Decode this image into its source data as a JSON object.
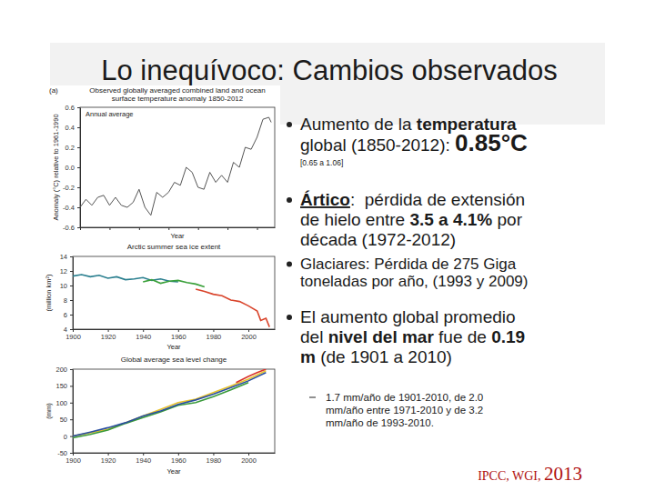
{
  "slide": {
    "title": "Lo inequívoco: Cambios observados",
    "bullets": [
      {
        "lines": [
          [
            "Aumento de la ",
            "temperatura"
          ],
          [
            "global (1850-2012): ",
            "0.85°C"
          ],
          [
            "[0.65 a 1.06]"
          ]
        ]
      },
      {
        "lines": [
          [
            "Ártico",
            ":  pérdida de extensión"
          ],
          [
            "de hielo entre ",
            "3.5 a 4.1%",
            " por"
          ],
          [
            "década (1972-2012)"
          ]
        ]
      },
      {
        "lines": [
          [
            "Glaciares: Pérdida de 275 Giga"
          ],
          [
            "toneladas por año, (1993 y 2009)"
          ]
        ]
      },
      {
        "lines": [
          [
            "El aumento global promedio"
          ],
          [
            "del ",
            "nivel del mar",
            " fue de ",
            "0.19"
          ],
          [
            "m",
            " (de 1901 a 2010)"
          ]
        ]
      }
    ],
    "sub_bullets": [
      {
        "lines": [
          "1.7 mm/año de 1901-2010, de 2.0",
          "mm/año entre 1971-2010 y de 3.2",
          "mm/año de 1993-2010."
        ]
      }
    ],
    "source": [
      "IPCC, WGI, ",
      "2013"
    ]
  },
  "chart_data": [
    {
      "type": "line",
      "panel_label": "(a)",
      "title": [
        "Observed globally averaged combined land and ocean",
        "surface temperature anomaly 1850-2012"
      ],
      "annotation": "Annual average",
      "x_label": "Year",
      "y_label": "Anomaly (°C) relative to 1961-1990",
      "x": [
        1850,
        1855,
        1860,
        1865,
        1870,
        1875,
        1880,
        1885,
        1890,
        1895,
        1900,
        1905,
        1910,
        1915,
        1920,
        1925,
        1930,
        1935,
        1940,
        1945,
        1950,
        1955,
        1960,
        1965,
        1970,
        1975,
        1980,
        1985,
        1990,
        1995,
        2000,
        2005,
        2010,
        2012
      ],
      "series": [
        {
          "color": "#555555",
          "values": [
            -0.4,
            -0.32,
            -0.38,
            -0.3,
            -0.28,
            -0.38,
            -0.3,
            -0.38,
            -0.4,
            -0.35,
            -0.22,
            -0.4,
            -0.48,
            -0.25,
            -0.3,
            -0.25,
            -0.15,
            -0.18,
            0.0,
            -0.05,
            -0.2,
            -0.22,
            -0.05,
            -0.15,
            -0.08,
            -0.15,
            0.05,
            0.0,
            0.2,
            0.18,
            0.3,
            0.48,
            0.5,
            0.45
          ]
        }
      ],
      "xlim": [
        1850,
        2015
      ],
      "xticks": [
        1850,
        1875,
        1900,
        1925,
        1950,
        1975,
        2000
      ],
      "ylim": [
        -0.6,
        0.6
      ],
      "yticks": [
        -0.6,
        -0.4,
        -0.2,
        {
          "value": 0,
          "label": "0.0"
        },
        0.2,
        0.4,
        0.6
      ],
      "tick_labels": "y"
    },
    {
      "type": "line",
      "title": [
        "Arctic summer sea ice extent"
      ],
      "x_label": "Year",
      "y_label": "(million km²)",
      "series": [
        {
          "color": "#2a7f8f",
          "x": [
            1900,
            1905,
            1910,
            1915,
            1920,
            1925,
            1930,
            1935,
            1940,
            1945,
            1950,
            1955,
            1960
          ],
          "values": [
            11.3,
            11.5,
            11.2,
            11.4,
            11.0,
            11.2,
            10.8,
            10.9,
            11.1,
            10.7,
            10.9,
            10.6,
            10.5
          ]
        },
        {
          "color": "#3aa03a",
          "x": [
            1940,
            1945,
            1950,
            1955,
            1960,
            1965,
            1970,
            1975
          ],
          "values": [
            10.5,
            10.8,
            10.3,
            10.6,
            10.7,
            10.4,
            10.2,
            9.8
          ]
        },
        {
          "color": "#d9442b",
          "x": [
            1970,
            1975,
            1980,
            1985,
            1990,
            1995,
            2000,
            2005,
            2007,
            2010,
            2012
          ],
          "values": [
            9.5,
            9.2,
            8.8,
            8.6,
            8.0,
            7.8,
            7.2,
            6.5,
            5.2,
            5.5,
            4.3
          ]
        }
      ],
      "xlim": [
        1900,
        2015
      ],
      "xticks": [
        1900,
        1920,
        1940,
        1960,
        1980,
        2000
      ],
      "ylim": [
        4,
        14
      ],
      "yticks": [
        4,
        6,
        8,
        10,
        12,
        14
      ]
    },
    {
      "type": "line",
      "title": [
        "Global average sea level change"
      ],
      "x_label": "Year",
      "y_label": "(mm)",
      "series": [
        {
          "color": "#e8c22a",
          "x": [
            1900,
            1910,
            1920,
            1930,
            1940,
            1950,
            1960,
            1970,
            1980,
            1990,
            2000,
            2010
          ],
          "values": [
            0,
            10,
            20,
            40,
            60,
            80,
            100,
            110,
            130,
            150,
            170,
            195
          ]
        },
        {
          "color": "#3a9a3a",
          "x": [
            1900,
            1910,
            1920,
            1930,
            1940,
            1950,
            1960,
            1970,
            1980,
            1990,
            2000
          ],
          "values": [
            -5,
            5,
            18,
            38,
            55,
            72,
            92,
            100,
            118,
            138,
            160
          ]
        },
        {
          "color": "#2a4fa0",
          "x": [
            1900,
            1910,
            1920,
            1930,
            1940,
            1950,
            1960,
            1970,
            1980,
            1990,
            2000,
            2010
          ],
          "values": [
            0,
            12,
            25,
            40,
            60,
            75,
            95,
            108,
            125,
            145,
            165,
            190
          ]
        },
        {
          "color": "#d9342b",
          "x": [
            1993,
            2000,
            2005,
            2010
          ],
          "values": [
            160,
            178,
            190,
            200
          ]
        }
      ],
      "xlim": [
        1900,
        2015
      ],
      "xticks": [
        1900,
        1920,
        1940,
        1960,
        1980,
        2000
      ],
      "ylim": [
        -50,
        200
      ],
      "yticks": [
        -50,
        0,
        50,
        100,
        150,
        200
      ]
    }
  ]
}
